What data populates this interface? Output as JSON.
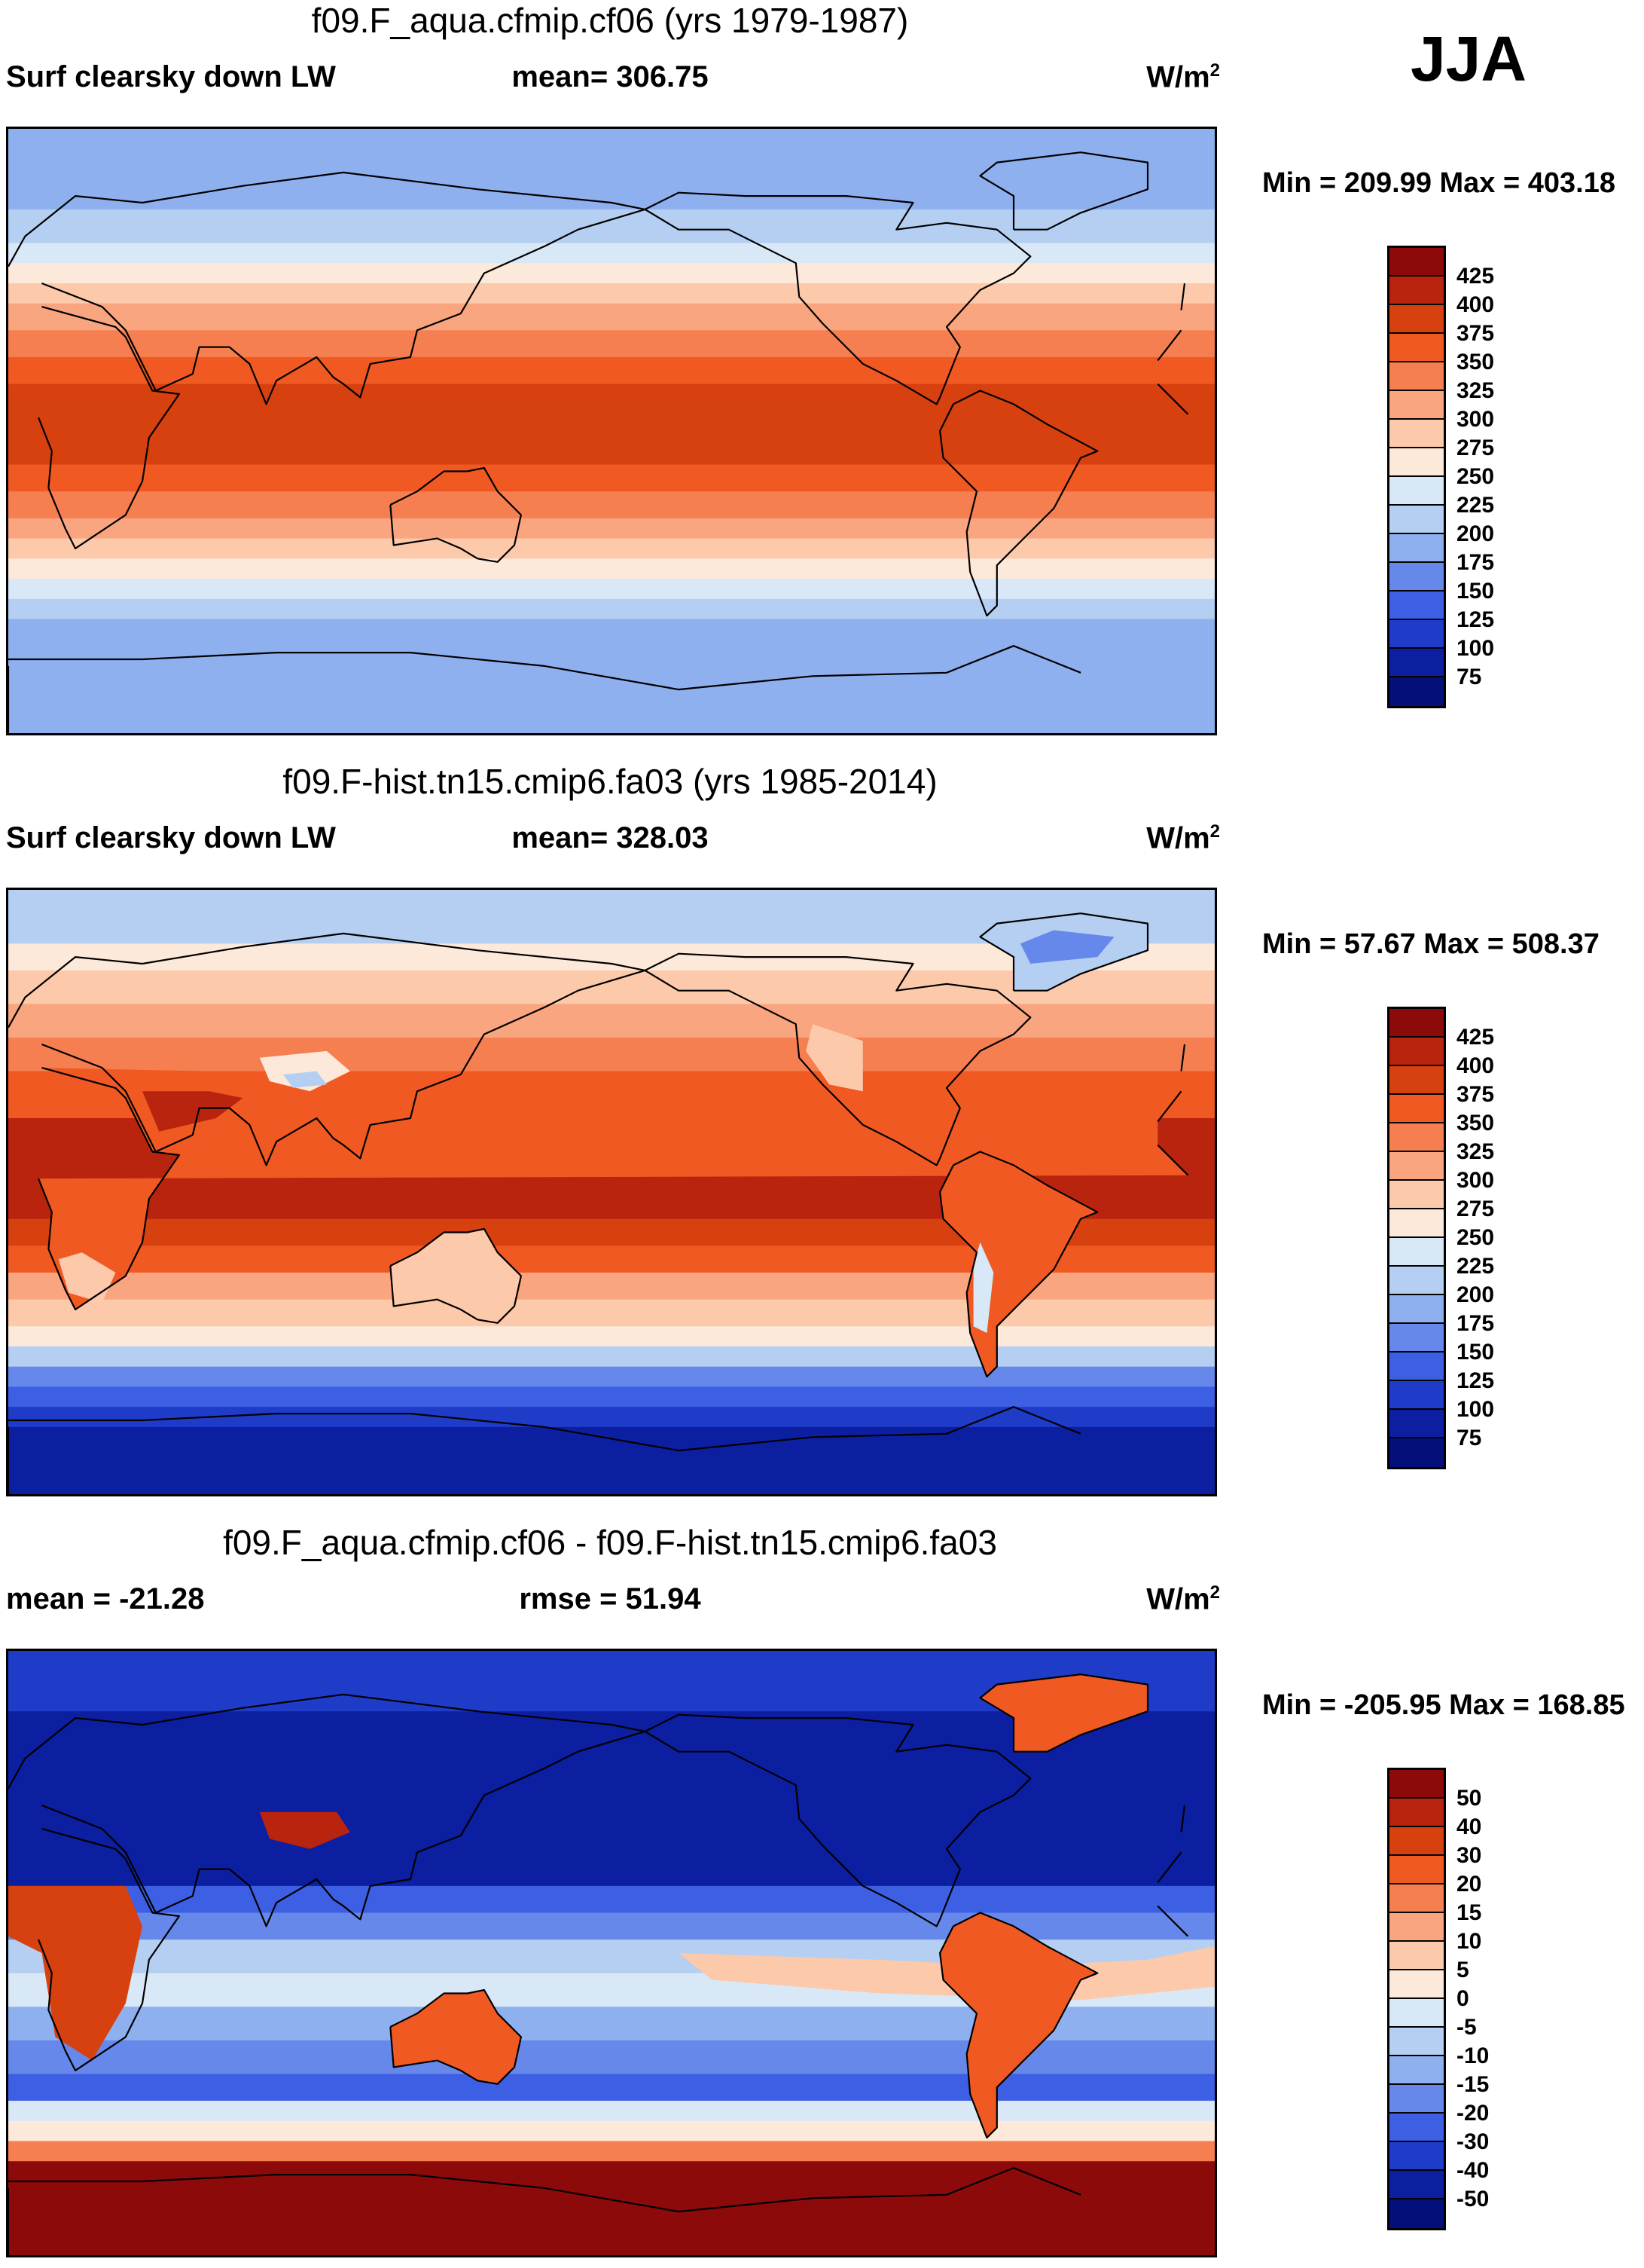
{
  "season": "JJA",
  "panels": [
    {
      "title": "f09.F_aqua.cfmip.cf06 (yrs 1979-1987)",
      "left_label": "Surf clearsky down LW",
      "mid_label": "mean= 306.75",
      "units": "W/m",
      "units_exp": "2",
      "minmax": "Min = 209.99 Max = 403.18",
      "levels": [
        "425",
        "400",
        "375",
        "350",
        "325",
        "300",
        "275",
        "250",
        "225",
        "200",
        "175",
        "150",
        "125",
        "100",
        "75"
      ]
    },
    {
      "title": "f09.F-hist.tn15.cmip6.fa03 (yrs 1985-2014)",
      "left_label": "Surf clearsky down LW",
      "mid_label": "mean= 328.03",
      "units": "W/m",
      "units_exp": "2",
      "minmax": "Min =  57.67 Max = 508.37",
      "levels": [
        "425",
        "400",
        "375",
        "350",
        "325",
        "300",
        "275",
        "250",
        "225",
        "200",
        "175",
        "150",
        "125",
        "100",
        "75"
      ]
    },
    {
      "title": "f09.F_aqua.cfmip.cf06 - f09.F-hist.tn15.cmip6.fa03",
      "left_label": "mean = -21.28",
      "mid_label": "rmse =  51.94",
      "units": "W/m",
      "units_exp": "2",
      "minmax": "Min = -205.95 Max = 168.85",
      "levels": [
        "50",
        "40",
        "30",
        "20",
        "15",
        "10",
        "5",
        "0",
        "-5",
        "-10",
        "-15",
        "-20",
        "-30",
        "-40",
        "-50"
      ]
    }
  ],
  "colors": {
    "scale": [
      "#8c0a0a",
      "#b8240e",
      "#d7400f",
      "#f05a22",
      "#f57f50",
      "#f9a57f",
      "#fcc9ab",
      "#fde9da",
      "#d9e8f7",
      "#b5cff2",
      "#8fb0ee",
      "#6688ea",
      "#3d5fe3",
      "#1f3cc9",
      "#0c1fa0",
      "#050f7a"
    ],
    "land_outline": "#000000"
  }
}
